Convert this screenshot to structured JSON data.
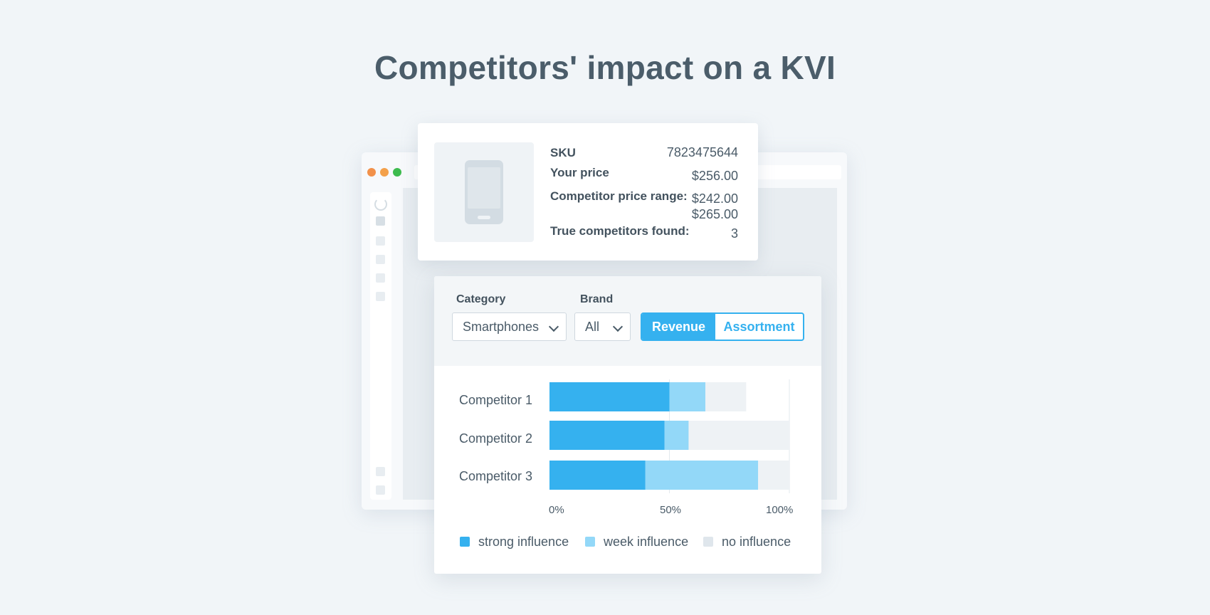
{
  "page": {
    "title": "Competitors' impact on a KVI"
  },
  "product": {
    "sku_label": "SKU",
    "sku_value": "7823475644",
    "your_price_label": "Your price",
    "your_price_value": "$256.00",
    "competitor_range_label": "Competitor price range:",
    "competitor_range_min": "$242.00",
    "competitor_range_max": "$265.00",
    "true_competitors_label": "True competitors found:",
    "true_competitors_value": "3",
    "image_icon": "smartphone-icon"
  },
  "filters": {
    "category_label": "Category",
    "category_value": "Smartphones",
    "brand_label": "Brand",
    "brand_value": "All",
    "toggle": {
      "active": "Revenue",
      "inactive": "Assortment"
    }
  },
  "window": {
    "icons": [
      "refresh-icon",
      "dashboard-icon",
      "nav-icon",
      "nav-icon",
      "nav-icon",
      "nav-icon",
      "settings-icon",
      "help-icon"
    ]
  },
  "colors": {
    "strong": "#35b1ef",
    "week": "#93d8f8",
    "none": "#eef2f5",
    "accent": "#35b1ef"
  },
  "chart_data": {
    "type": "bar",
    "orientation": "horizontal",
    "stacked": true,
    "categories": [
      "Competitor 1",
      "Competitor 2",
      "Competitor 3"
    ],
    "series": [
      {
        "name": "strong influence",
        "values": [
          50,
          48,
          40
        ]
      },
      {
        "name": "week influence",
        "values": [
          15,
          10,
          47
        ]
      },
      {
        "name": "no influence",
        "values": [
          17,
          42,
          13
        ]
      }
    ],
    "xlim": [
      0,
      100
    ],
    "xticks": [
      "0%",
      "50%",
      "100%"
    ],
    "legend_position": "bottom",
    "grid": true
  }
}
